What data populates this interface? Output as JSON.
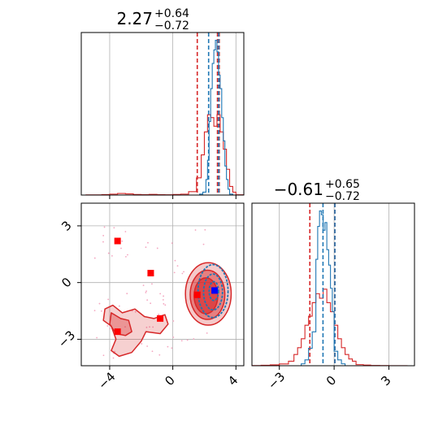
{
  "chart_data": [
    {
      "type": "histogram",
      "title": {
        "main": "2.27",
        "sup": "+0.64",
        "sub": "−0.72"
      },
      "xlim": [
        -5.8,
        4.5
      ],
      "grid": true,
      "x_ticks": [
        -4,
        0,
        4
      ],
      "series": [
        {
          "color": "#d62728",
          "bins": [
            -5.5,
            -4.5,
            -4.0,
            -3.5,
            -3.0,
            -2.5,
            -2.0,
            -1.5,
            -1.0,
            -0.5,
            0.0,
            0.5,
            1.0,
            1.5,
            1.8,
            2.0,
            2.2,
            2.4,
            2.6,
            2.8,
            3.0,
            3.2,
            3.4,
            3.6,
            3.8,
            4.0,
            4.5
          ],
          "counts": [
            0.2,
            0.4,
            0.8,
            1.4,
            1.0,
            0.5,
            0.3,
            0.6,
            0.3,
            0.2,
            0.5,
            0.8,
            3.0,
            9.0,
            14.0,
            22.0,
            28.0,
            27.0,
            24.0,
            28.0,
            22.0,
            16.0,
            9.0,
            3.0,
            1.0,
            0.2
          ],
          "quantiles": [
            1.55,
            2.83,
            2.94
          ]
        },
        {
          "color": "#1f77b4",
          "bins": [
            1.7,
            1.9,
            2.1,
            2.2,
            2.3,
            2.4,
            2.5,
            2.6,
            2.7,
            2.8,
            2.9,
            3.0,
            3.1,
            3.2,
            3.3,
            3.4,
            3.5,
            3.6,
            3.8
          ],
          "counts": [
            1,
            3,
            8,
            18,
            38,
            55,
            68,
            75,
            80,
            74,
            62,
            55,
            40,
            28,
            15,
            8,
            3,
            1
          ],
          "quantiles": [
            2.27,
            2.91
          ]
        }
      ]
    },
    {
      "type": "histogram",
      "title": {
        "main": "−0.61",
        "sup": "+0.65",
        "sub": "−0.72"
      },
      "xlim": [
        -4.5,
        4.4
      ],
      "grid": true,
      "x_ticks": [
        -3,
        0,
        3
      ],
      "series": [
        {
          "color": "#d62728",
          "bins": [
            -4.5,
            -4.0,
            -3.5,
            -3.0,
            -2.5,
            -2.2,
            -2.0,
            -1.8,
            -1.6,
            -1.4,
            -1.2,
            -1.0,
            -0.8,
            -0.6,
            -0.4,
            -0.2,
            0.0,
            0.2,
            0.4,
            0.6,
            0.8,
            1.0,
            1.2,
            1.6,
            2.0,
            2.5,
            3.0,
            4.0
          ],
          "counts": [
            0.2,
            0.5,
            1.0,
            2.0,
            3.0,
            5.0,
            8.0,
            12.0,
            18.0,
            22.0,
            28.0,
            32.0,
            30.0,
            34.0,
            28.0,
            24.0,
            18.0,
            12.0,
            8.0,
            5.0,
            3.0,
            2.0,
            1.0,
            0.6,
            0.3,
            0.2,
            0.1
          ],
          "quantiles": [
            -1.33,
            0.04
          ]
        },
        {
          "color": "#1f77b4",
          "bins": [
            -1.8,
            -1.6,
            -1.4,
            -1.2,
            -1.0,
            -0.9,
            -0.8,
            -0.7,
            -0.6,
            -0.5,
            -0.4,
            -0.3,
            -0.2,
            -0.1,
            0.0,
            0.2,
            0.4,
            0.6
          ],
          "counts": [
            2,
            6,
            18,
            35,
            55,
            72,
            80,
            78,
            70,
            74,
            60,
            52,
            40,
            28,
            15,
            6,
            2
          ],
          "quantiles": [
            -0.61,
            0.04
          ]
        }
      ]
    },
    {
      "type": "contour2d",
      "xlim": [
        -5.8,
        4.5
      ],
      "ylim": [
        -4.4,
        4.2
      ],
      "x_ticks": [
        -4,
        0,
        4
      ],
      "y_ticks": [
        -3,
        0,
        3
      ],
      "grid": true,
      "red_square_points": [
        [
          -3.5,
          2.2
        ],
        [
          -1.4,
          0.5
        ],
        [
          -0.8,
          -1.9
        ],
        [
          -3.5,
          -2.6
        ],
        [
          1.55,
          -0.65
        ]
      ],
      "blue_square_points": [
        [
          2.65,
          -0.42
        ]
      ],
      "red_contours": [
        {
          "level": "outer",
          "shape": "blob",
          "center": [
            2.25,
            -0.6
          ],
          "rx": 1.45,
          "ry": 1.65
        },
        {
          "level": "middle",
          "shape": "blob",
          "center": [
            2.2,
            -0.65
          ],
          "rx": 1.1,
          "ry": 1.3
        },
        {
          "level": "inner",
          "shape": "blob",
          "center": [
            2.1,
            -0.7
          ],
          "rx": 0.75,
          "ry": 0.95
        },
        {
          "level": "secondary-outer",
          "shape": "region",
          "path": [
            [
              -4.3,
              -1.4
            ],
            [
              -3.8,
              -1.2
            ],
            [
              -3.2,
              -1.6
            ],
            [
              -2.4,
              -1.4
            ],
            [
              -1.8,
              -1.8
            ],
            [
              -1.2,
              -1.9
            ],
            [
              -0.5,
              -1.7
            ],
            [
              -0.3,
              -2.2
            ],
            [
              -0.8,
              -2.7
            ],
            [
              -1.7,
              -2.6
            ],
            [
              -2.0,
              -3.1
            ],
            [
              -2.6,
              -3.7
            ],
            [
              -3.4,
              -3.9
            ],
            [
              -3.9,
              -3.6
            ],
            [
              -3.6,
              -3.0
            ],
            [
              -3.9,
              -2.3
            ],
            [
              -4.4,
              -2.0
            ]
          ]
        },
        {
          "level": "secondary-inner",
          "shape": "region",
          "path": [
            [
              -3.9,
              -1.6
            ],
            [
              -3.3,
              -1.9
            ],
            [
              -2.8,
              -2.0
            ],
            [
              -2.6,
              -2.6
            ],
            [
              -3.0,
              -2.8
            ],
            [
              -3.6,
              -2.7
            ],
            [
              -4.0,
              -2.2
            ]
          ]
        }
      ],
      "blue_contours": [
        {
          "level": "outer",
          "center": [
            2.55,
            -0.45
          ],
          "rx": 0.95,
          "ry": 1.4
        },
        {
          "level": "middle",
          "center": [
            2.55,
            -0.5
          ],
          "rx": 0.6,
          "ry": 0.95
        },
        {
          "level": "inner",
          "center": [
            2.6,
            -0.45
          ],
          "rx": 0.3,
          "ry": 0.5
        }
      ],
      "scatter_color": "#f4a6c0"
    }
  ]
}
